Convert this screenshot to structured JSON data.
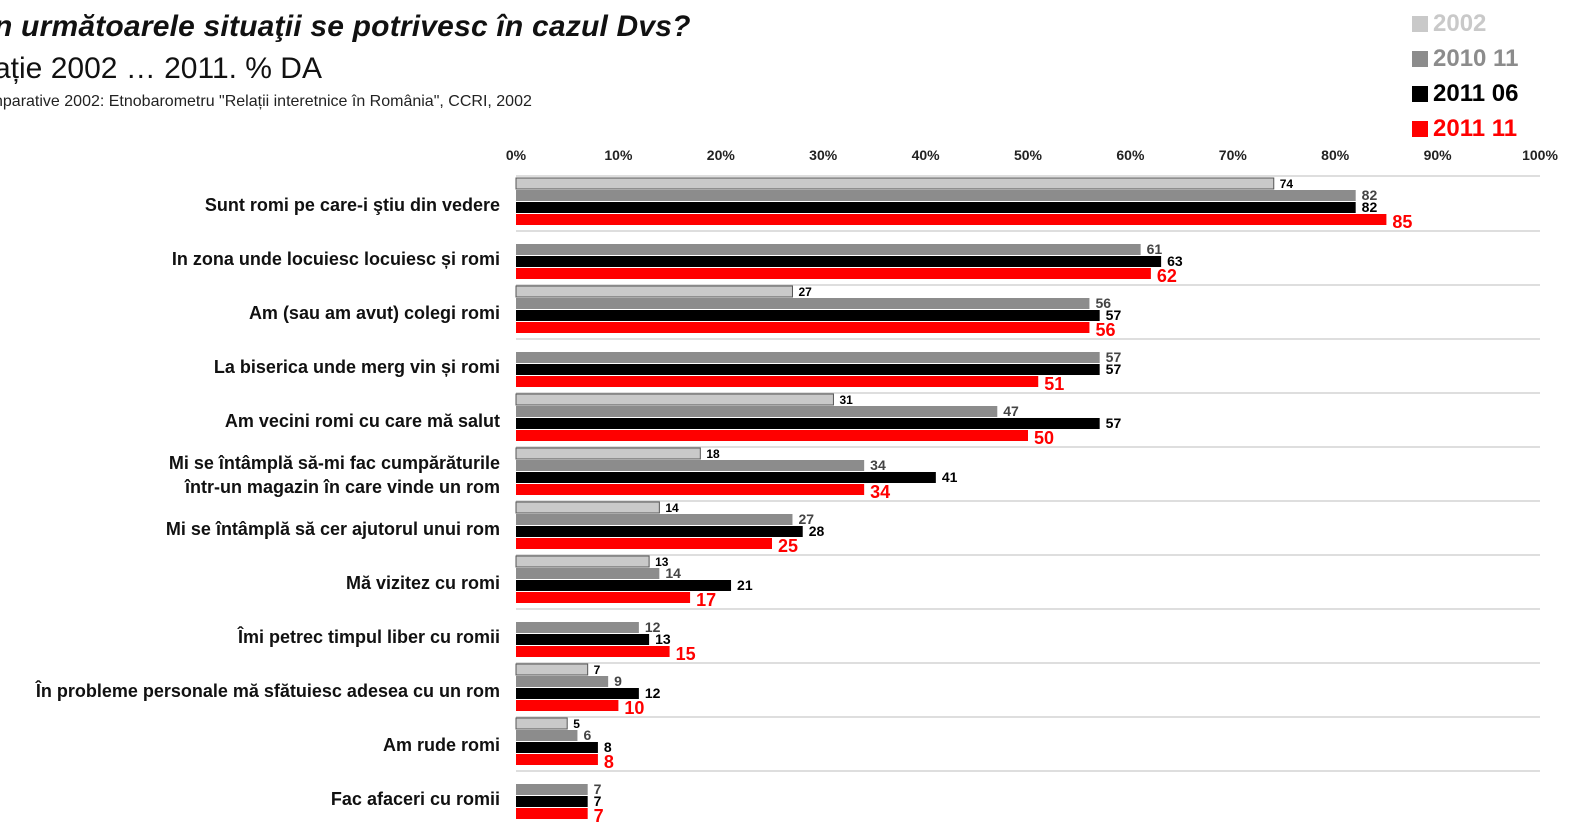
{
  "title": "n următoarele situaţii se potrivesc în cazul Dvs?",
  "subtitle": "ație 2002 … 2011. % DA",
  "source": "nparative 2002: Etnobarometru \"Relații interetnice în România\", CCRI, 2002",
  "colors": {
    "2002": "#c9c9c9",
    "2010 11": "#8c8c8c",
    "2011 06": "#000000",
    "2011 11": "#ff0000"
  },
  "chart_data": {
    "type": "bar",
    "orientation": "horizontal",
    "title": "n următoarele situaţii se potrivesc în cazul Dvs?",
    "subtitle": "ație 2002 … 2011. % DA",
    "xlim": [
      0,
      100
    ],
    "x_ticks": [
      "0%",
      "10%",
      "20%",
      "30%",
      "40%",
      "50%",
      "60%",
      "70%",
      "80%",
      "90%",
      "100%"
    ],
    "grid": "horizontal separators between categories",
    "legend_position": "top-right",
    "categories": [
      [
        "Sunt romi pe care-i ştiu din vedere"
      ],
      [
        "In zona unde locuiesc locuiesc și romi"
      ],
      [
        "Am (sau am avut) colegi romi"
      ],
      [
        "La biserica unde merg vin și romi"
      ],
      [
        "Am vecini romi cu care mă salut"
      ],
      [
        "Mi se întâmplă să-mi fac cumpărăturile",
        "într-un magazin în care vinde un rom"
      ],
      [
        "Mi se întâmplă să cer ajutorul unui rom"
      ],
      [
        "Mă vizitez cu romi"
      ],
      [
        "Îmi petrec timpul liber cu romii"
      ],
      [
        "În probleme personale mă sfătuiesc adesea cu un rom"
      ],
      [
        "Am rude romi"
      ],
      [
        "Fac afaceri cu romii"
      ]
    ],
    "series": [
      {
        "name": "2002",
        "values": [
          74,
          null,
          27,
          null,
          31,
          18,
          14,
          13,
          null,
          7,
          5,
          null
        ]
      },
      {
        "name": "2010 11",
        "values": [
          82,
          61,
          56,
          57,
          47,
          34,
          27,
          14,
          12,
          9,
          6,
          7
        ]
      },
      {
        "name": "2011 06",
        "values": [
          82,
          63,
          57,
          57,
          57,
          41,
          28,
          21,
          13,
          12,
          8,
          7
        ]
      },
      {
        "name": "2011 11",
        "values": [
          85,
          62,
          56,
          51,
          50,
          34,
          25,
          17,
          15,
          10,
          8,
          7
        ]
      }
    ]
  }
}
